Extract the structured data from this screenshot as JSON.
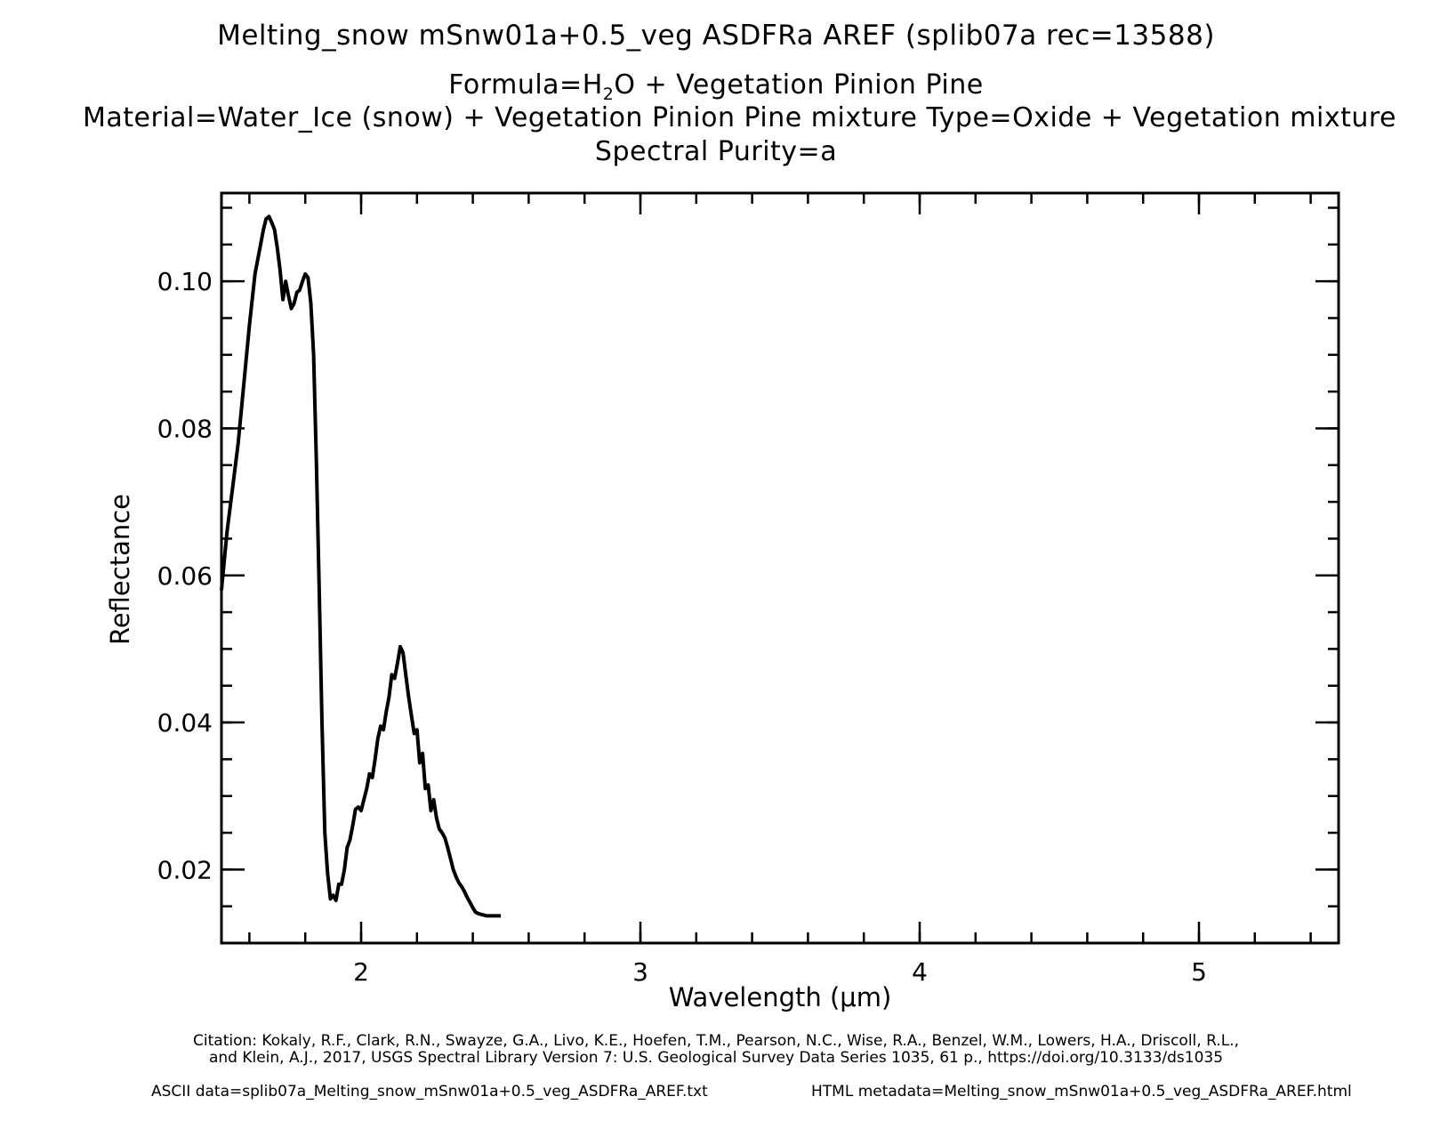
{
  "titles": {
    "line1": "Melting_snow mSnw01a+0.5_veg ASDFRa AREF   (splib07a rec=13588)",
    "formula_prefix": "Formula=H",
    "formula_sub": "2",
    "formula_suffix": "O + Vegetation Pinion Pine",
    "line3": "Material=Water_Ice (snow) + Vegetation Pinion Pine mixture  Type=Oxide + Vegetation mixture",
    "line4": "Spectral Purity=a"
  },
  "footer": {
    "citation_line1": "Citation: Kokaly, R.F., Clark, R.N., Swayze, G.A., Livo, K.E., Hoefen, T.M., Pearson, N.C., Wise, R.A., Benzel, W.M., Lowers, H.A., Driscoll, R.L.,",
    "citation_line2": "and Klein, A.J., 2017, USGS Spectral Library Version 7: U.S. Geological Survey Data Series 1035, 61 p., https://doi.org/10.3133/ds1035",
    "ascii": "ASCII data=splib07a_Melting_snow_mSnw01a+0.5_veg_ASDFRa_AREF.txt",
    "html": "HTML metadata=Melting_snow_mSnw01a+0.5_veg_ASDFRa_AREF.html"
  },
  "chart_data": {
    "type": "line",
    "xlabel": "Wavelength (μm)",
    "ylabel": "Reflectance",
    "xlim": [
      1.5,
      5.5
    ],
    "ylim": [
      0.01,
      0.112
    ],
    "grid": false,
    "line_color": "#000000",
    "x_ticks": [
      {
        "value": 2,
        "label": "2"
      },
      {
        "value": 3,
        "label": "3"
      },
      {
        "value": 4,
        "label": "4"
      },
      {
        "value": 5,
        "label": "5"
      }
    ],
    "y_ticks": [
      {
        "value": 0.02,
        "label": "0.02"
      },
      {
        "value": 0.04,
        "label": "0.04"
      },
      {
        "value": 0.06,
        "label": "0.06"
      },
      {
        "value": 0.08,
        "label": "0.08"
      },
      {
        "value": 0.1,
        "label": "0.10"
      }
    ],
    "x_minor_step": 0.2,
    "y_minor_step": 0.005,
    "series": [
      {
        "x": [
          1.5,
          1.52,
          1.54,
          1.56,
          1.58,
          1.6,
          1.62,
          1.64,
          1.65,
          1.66,
          1.67,
          1.68,
          1.69,
          1.7,
          1.71,
          1.72,
          1.73,
          1.74,
          1.75,
          1.76,
          1.77,
          1.78,
          1.79,
          1.8,
          1.81,
          1.82,
          1.83,
          1.84,
          1.85,
          1.86,
          1.87,
          1.88,
          1.89,
          1.9,
          1.91,
          1.92,
          1.93,
          1.94,
          1.95,
          1.96,
          1.97,
          1.98,
          1.99,
          2.0,
          2.01,
          2.02,
          2.03,
          2.04,
          2.05,
          2.06,
          2.07,
          2.08,
          2.09,
          2.1,
          2.11,
          2.12,
          2.13,
          2.14,
          2.15,
          2.16,
          2.17,
          2.18,
          2.19,
          2.2,
          2.21,
          2.22,
          2.23,
          2.24,
          2.25,
          2.26,
          2.27,
          2.28,
          2.29,
          2.3,
          2.31,
          2.32,
          2.33,
          2.34,
          2.35,
          2.36,
          2.37,
          2.38,
          2.39,
          2.4,
          2.41,
          2.42,
          2.43,
          2.44,
          2.45,
          2.46,
          2.47,
          2.48,
          2.49,
          2.5
        ],
        "y": [
          0.058,
          0.066,
          0.072,
          0.078,
          0.086,
          0.094,
          0.101,
          0.105,
          0.107,
          0.1085,
          0.1088,
          0.108,
          0.107,
          0.1045,
          0.1015,
          0.0975,
          0.1,
          0.098,
          0.0963,
          0.097,
          0.0985,
          0.0988,
          0.1,
          0.101,
          0.1005,
          0.097,
          0.09,
          0.075,
          0.058,
          0.04,
          0.025,
          0.0195,
          0.016,
          0.0165,
          0.0158,
          0.018,
          0.018,
          0.02,
          0.023,
          0.024,
          0.026,
          0.0282,
          0.0285,
          0.028,
          0.0295,
          0.031,
          0.033,
          0.0325,
          0.035,
          0.0378,
          0.0395,
          0.039,
          0.0415,
          0.0435,
          0.0465,
          0.046,
          0.048,
          0.0503,
          0.0495,
          0.0465,
          0.0435,
          0.041,
          0.0385,
          0.039,
          0.0345,
          0.0358,
          0.031,
          0.0315,
          0.028,
          0.0295,
          0.027,
          0.0255,
          0.025,
          0.0243,
          0.023,
          0.0215,
          0.02,
          0.019,
          0.0182,
          0.0177,
          0.017,
          0.0162,
          0.0155,
          0.0148,
          0.0142,
          0.014,
          0.0139,
          0.0138,
          0.0137,
          0.0137,
          0.0137,
          0.0137,
          0.0137,
          0.0137
        ]
      }
    ]
  }
}
